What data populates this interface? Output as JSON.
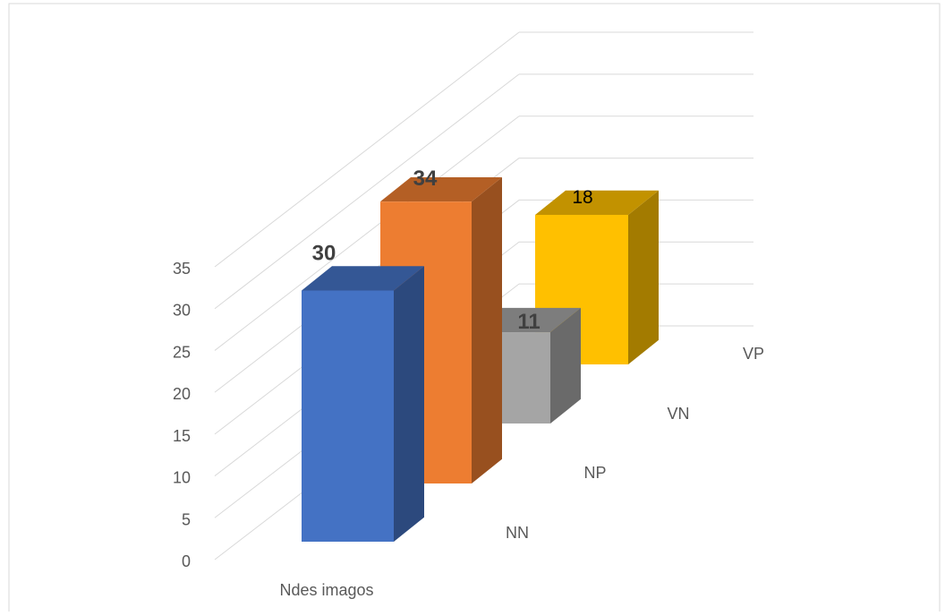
{
  "chart_data": {
    "type": "bar",
    "subtype": "3d-column-depth",
    "title": "",
    "xlabel": "Ndes imagos",
    "ylabel": "",
    "ylim": [
      0,
      35
    ],
    "y_ticks": [
      "0",
      "5",
      "10",
      "15",
      "20",
      "25",
      "30",
      "35"
    ],
    "grid": true,
    "legend": "none",
    "series": [
      {
        "name": "NN",
        "value": 30,
        "label": "30",
        "color": "#4472c4"
      },
      {
        "name": "NP",
        "value": 34,
        "label": "34",
        "color": "#ed7d31"
      },
      {
        "name": "VN",
        "value": 11,
        "label": "11",
        "color": "#a5a5a5"
      },
      {
        "name": "VP",
        "value": 18,
        "label": "18",
        "color": "#ffc000"
      }
    ]
  }
}
